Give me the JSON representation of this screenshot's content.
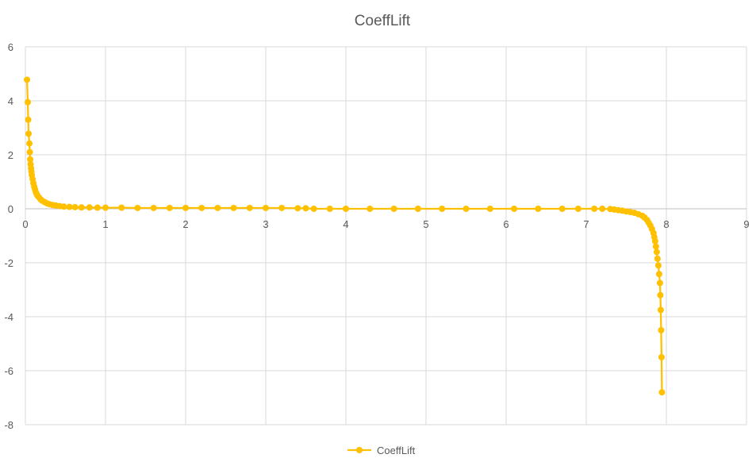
{
  "chart_data": {
    "type": "scatter",
    "title": "CoeffLift",
    "xlabel": "",
    "ylabel": "",
    "xlim": [
      0,
      9
    ],
    "ylim": [
      -8,
      6
    ],
    "x_ticks": [
      "0",
      "1",
      "2",
      "3",
      "4",
      "5",
      "6",
      "7",
      "8",
      "9"
    ],
    "y_ticks": [
      "6",
      "4",
      "2",
      "0",
      "-2",
      "-4",
      "-6",
      "-8"
    ],
    "grid": true,
    "legend_position": "bottom",
    "legend": [
      "CoeffLift"
    ],
    "series_color": "#FFC000",
    "grid_color": "#d9d9d9",
    "axis_color": "#bfbfbf",
    "text_color": "#595959",
    "marker": "circle",
    "series": [
      {
        "name": "CoeffLift",
        "points": [
          [
            0.02,
            4.78
          ],
          [
            0.03,
            3.95
          ],
          [
            0.035,
            3.3
          ],
          [
            0.04,
            2.78
          ],
          [
            0.05,
            2.42
          ],
          [
            0.055,
            2.1
          ],
          [
            0.06,
            1.83
          ],
          [
            0.065,
            1.65
          ],
          [
            0.07,
            1.5
          ],
          [
            0.075,
            1.38
          ],
          [
            0.08,
            1.25
          ],
          [
            0.09,
            1.1
          ],
          [
            0.1,
            0.95
          ],
          [
            0.11,
            0.82
          ],
          [
            0.12,
            0.72
          ],
          [
            0.13,
            0.62
          ],
          [
            0.14,
            0.55
          ],
          [
            0.15,
            0.49
          ],
          [
            0.17,
            0.42
          ],
          [
            0.19,
            0.35
          ],
          [
            0.21,
            0.3
          ],
          [
            0.24,
            0.25
          ],
          [
            0.27,
            0.2
          ],
          [
            0.3,
            0.17
          ],
          [
            0.34,
            0.14
          ],
          [
            0.38,
            0.12
          ],
          [
            0.43,
            0.1
          ],
          [
            0.48,
            0.08
          ],
          [
            0.55,
            0.07
          ],
          [
            0.62,
            0.06
          ],
          [
            0.7,
            0.05
          ],
          [
            0.8,
            0.05
          ],
          [
            0.9,
            0.04
          ],
          [
            1.0,
            0.04
          ],
          [
            1.2,
            0.04
          ],
          [
            1.4,
            0.03
          ],
          [
            1.6,
            0.03
          ],
          [
            1.8,
            0.03
          ],
          [
            2.0,
            0.03
          ],
          [
            2.2,
            0.03
          ],
          [
            2.4,
            0.03
          ],
          [
            2.6,
            0.03
          ],
          [
            2.8,
            0.03
          ],
          [
            3.0,
            0.03
          ],
          [
            3.2,
            0.03
          ],
          [
            3.4,
            0.02
          ],
          [
            3.5,
            0.02
          ],
          [
            3.6,
            0.0
          ],
          [
            3.8,
            0.0
          ],
          [
            4.0,
            0.0
          ],
          [
            4.3,
            0.0
          ],
          [
            4.6,
            0.0
          ],
          [
            4.9,
            0.0
          ],
          [
            5.2,
            0.0
          ],
          [
            5.5,
            0.0
          ],
          [
            5.8,
            0.0
          ],
          [
            6.1,
            0.0
          ],
          [
            6.4,
            0.0
          ],
          [
            6.7,
            0.0
          ],
          [
            6.9,
            0.0
          ],
          [
            7.1,
            0.0
          ],
          [
            7.2,
            0.0
          ],
          [
            7.3,
            -0.01
          ],
          [
            7.35,
            -0.03
          ],
          [
            7.4,
            -0.05
          ],
          [
            7.45,
            -0.07
          ],
          [
            7.5,
            -0.1
          ],
          [
            7.55,
            -0.12
          ],
          [
            7.6,
            -0.15
          ],
          [
            7.65,
            -0.2
          ],
          [
            7.7,
            -0.26
          ],
          [
            7.73,
            -0.33
          ],
          [
            7.76,
            -0.42
          ],
          [
            7.78,
            -0.52
          ],
          [
            7.8,
            -0.62
          ],
          [
            7.82,
            -0.75
          ],
          [
            7.84,
            -0.9
          ],
          [
            7.85,
            -1.05
          ],
          [
            7.86,
            -1.2
          ],
          [
            7.87,
            -1.4
          ],
          [
            7.88,
            -1.6
          ],
          [
            7.89,
            -1.85
          ],
          [
            7.9,
            -2.1
          ],
          [
            7.91,
            -2.42
          ],
          [
            7.92,
            -2.75
          ],
          [
            7.925,
            -3.2
          ],
          [
            7.93,
            -3.75
          ],
          [
            7.935,
            -4.5
          ],
          [
            7.94,
            -5.5
          ],
          [
            7.945,
            -6.8
          ]
        ]
      }
    ]
  }
}
